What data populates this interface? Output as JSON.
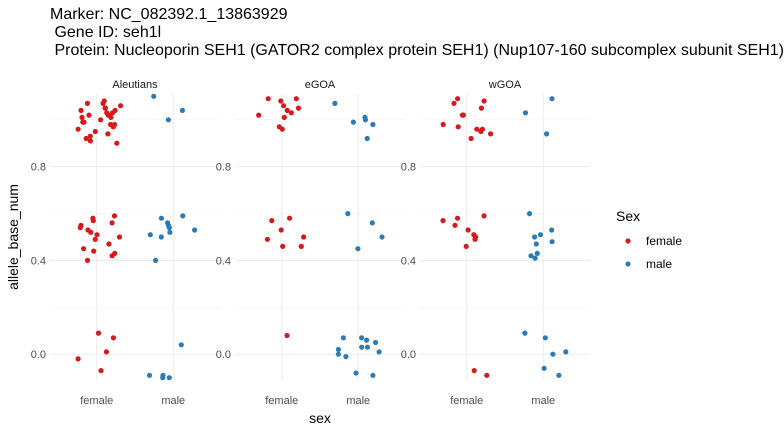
{
  "title": {
    "line1": "Marker: NC_082392.1_13863929",
    "line2": " Gene ID: seh1l",
    "line3": " Protein: Nucleoporin SEH1 (GATOR2 complex protein SEH1) (Nup107-160 subcomplex subunit SEH1)"
  },
  "chart_data": {
    "type": "scatter",
    "style": "jittered strip plot, facetted",
    "xlabel": "sex",
    "ylabel": "allele_base_num",
    "categories": [
      "female",
      "male"
    ],
    "y_ticks": [
      0.0,
      0.4,
      0.8
    ],
    "y_tick_labels": [
      "0.0",
      "0.4",
      "0.8"
    ],
    "ylim": [
      -0.11,
      1.11
    ],
    "grid": true,
    "legend": {
      "title": "Sex",
      "position": "right",
      "entries": [
        {
          "label": "female",
          "color": "#d7191c"
        },
        {
          "label": "male",
          "color": "#2c7bb6"
        }
      ]
    },
    "panels": [
      {
        "label": "Aleutians",
        "series": [
          {
            "name": "female",
            "x": "female",
            "values": [
              1.08,
              1.07,
              1.07,
              1.06,
              1.05,
              1.05,
              1.04,
              1.04,
              1.03,
              1.03,
              1.02,
              1.02,
              1.01,
              1.01,
              1.0,
              0.99,
              0.99,
              0.98,
              0.98,
              0.97,
              0.96,
              0.95,
              0.94,
              0.93,
              0.92,
              0.91,
              0.9,
              0.59,
              0.58,
              0.57,
              0.56,
              0.55,
              0.54,
              0.53,
              0.52,
              0.51,
              0.5,
              0.49,
              0.47,
              0.45,
              0.44,
              0.43,
              0.42,
              0.4,
              0.09,
              0.07,
              0.01,
              -0.02,
              -0.07
            ]
          },
          {
            "name": "male",
            "x": "male",
            "values": [
              1.1,
              1.04,
              1.0,
              0.59,
              0.58,
              0.56,
              0.55,
              0.54,
              0.53,
              0.52,
              0.51,
              0.5,
              0.4,
              0.04,
              -0.09,
              -0.09,
              -0.1,
              -0.1
            ]
          }
        ]
      },
      {
        "label": "eGOA",
        "series": [
          {
            "name": "female",
            "x": "female",
            "values": [
              1.09,
              1.09,
              1.08,
              1.06,
              1.05,
              1.04,
              1.03,
              1.02,
              1.01,
              0.97,
              0.96,
              0.58,
              0.57,
              0.53,
              0.5,
              0.49,
              0.46,
              0.46,
              0.08
            ]
          },
          {
            "name": "male",
            "x": "male",
            "values": [
              1.07,
              1.01,
              1.0,
              0.99,
              0.98,
              0.92,
              0.6,
              0.56,
              0.5,
              0.45,
              0.07,
              0.07,
              0.06,
              0.05,
              0.03,
              0.03,
              0.02,
              0.01,
              0.0,
              -0.01,
              -0.08,
              -0.09
            ]
          }
        ]
      },
      {
        "label": "wGOA",
        "series": [
          {
            "name": "female",
            "x": "female",
            "values": [
              1.09,
              1.08,
              1.07,
              1.05,
              1.02,
              1.02,
              0.98,
              0.97,
              0.96,
              0.96,
              0.95,
              0.94,
              0.92,
              0.59,
              0.58,
              0.57,
              0.55,
              0.53,
              0.51,
              0.5,
              0.49,
              0.46,
              -0.07,
              -0.09
            ]
          },
          {
            "name": "male",
            "x": "male",
            "values": [
              1.09,
              1.03,
              0.94,
              0.6,
              0.53,
              0.51,
              0.5,
              0.48,
              0.47,
              0.43,
              0.42,
              0.41,
              0.09,
              0.07,
              0.01,
              0.0,
              -0.06,
              -0.09
            ]
          }
        ]
      }
    ]
  }
}
